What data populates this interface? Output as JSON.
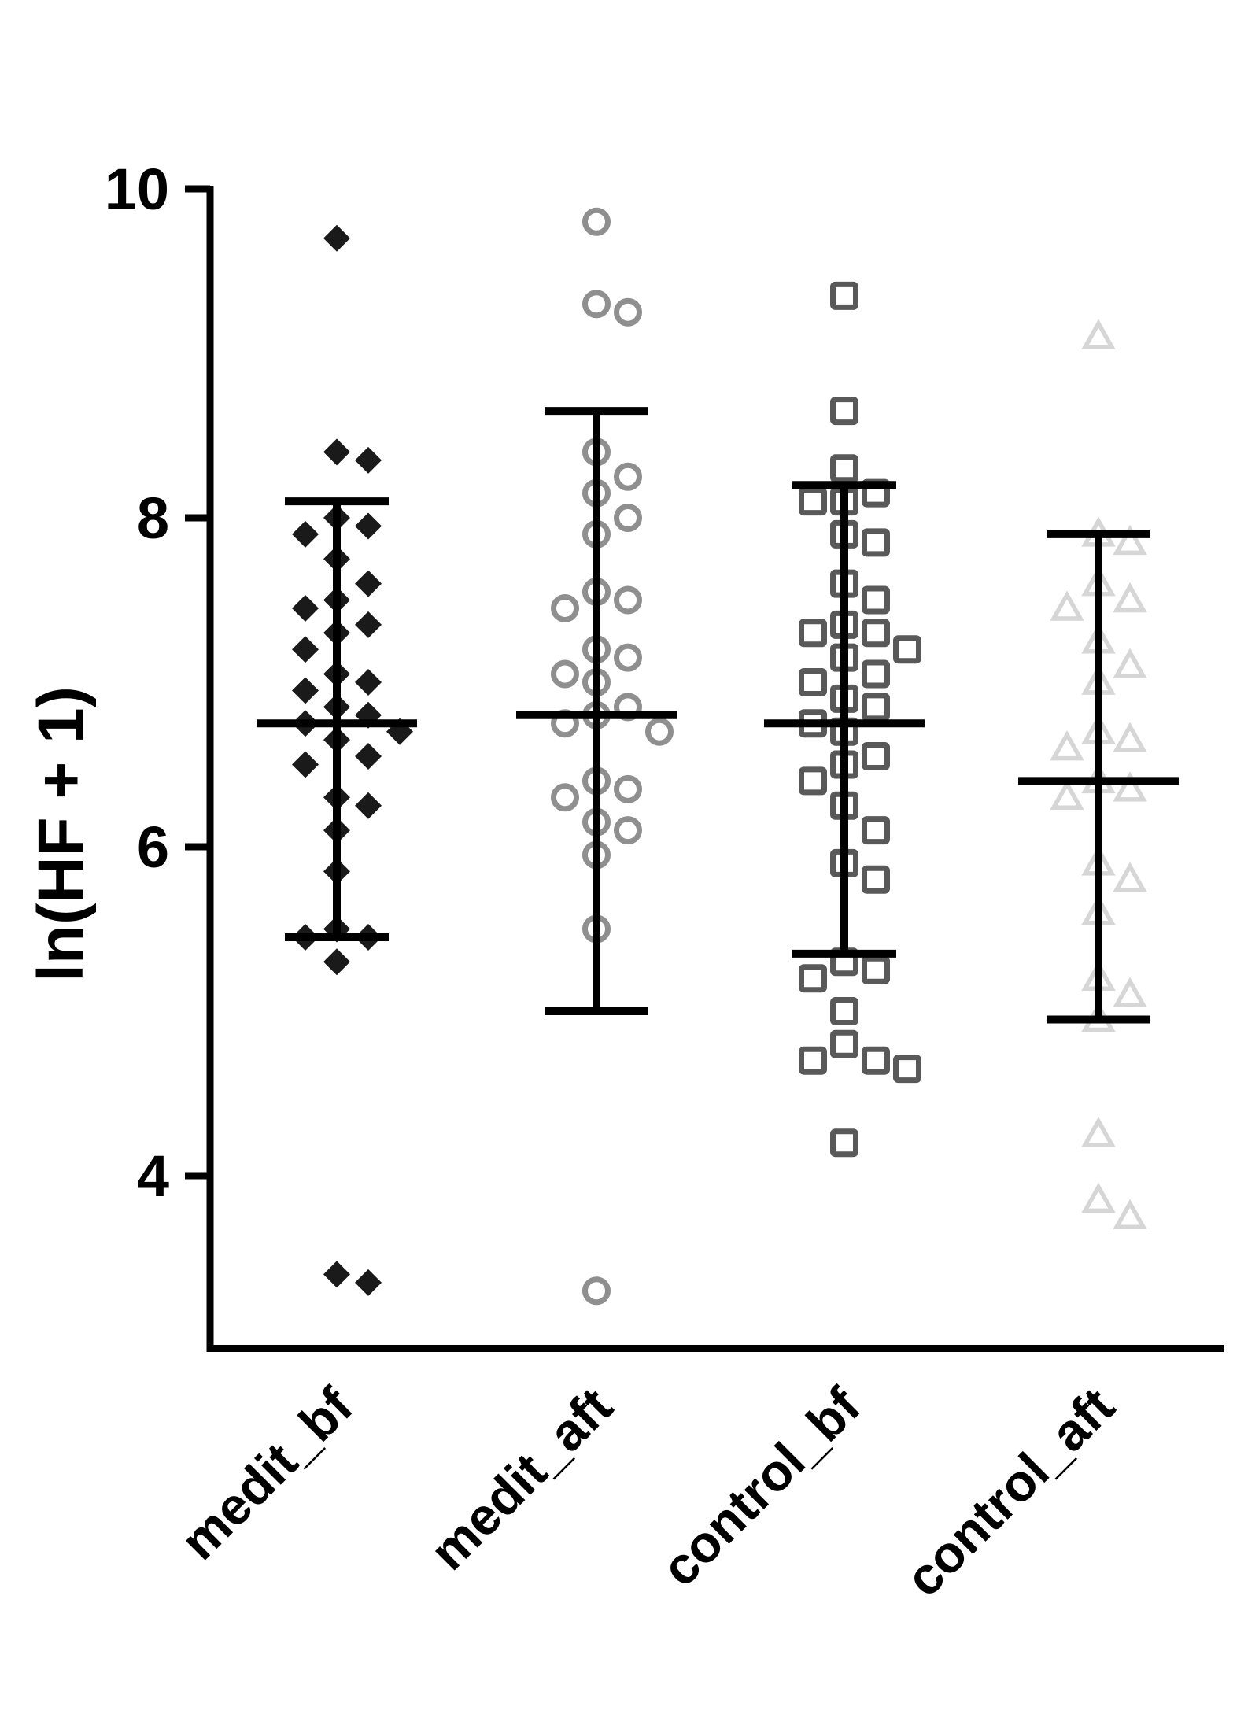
{
  "figure": {
    "background": "#ffffff",
    "axis_color": "#000000"
  },
  "chart_data": {
    "type": "scatter",
    "title": "",
    "xlabel": "",
    "ylabel": "ln(HF + 1)",
    "ylim": [
      2.95,
      10.3
    ],
    "yticks": [
      4,
      6,
      8,
      10
    ],
    "grid": false,
    "legend": "none",
    "error_bar_style": "mean_with_sd_caps",
    "groups": [
      {
        "name": "medit_bf",
        "marker": "diamond-filled",
        "color": "#1a1a1a",
        "mean": 6.75,
        "error_low": 5.45,
        "error_high": 8.1,
        "values": [
          9.7,
          8.4,
          8.35,
          8.0,
          7.95,
          7.9,
          7.75,
          7.6,
          7.5,
          7.45,
          7.35,
          7.3,
          7.2,
          7.05,
          7.0,
          6.95,
          6.85,
          6.8,
          6.75,
          6.7,
          6.65,
          6.55,
          6.5,
          6.3,
          6.25,
          6.1,
          5.85,
          5.5,
          5.45,
          5.45,
          5.3,
          3.4,
          3.35
        ]
      },
      {
        "name": "medit_aft",
        "marker": "circle-open",
        "color": "#8f8f8f",
        "mean": 6.8,
        "error_low": 5.0,
        "error_high": 8.65,
        "values": [
          9.8,
          9.3,
          9.25,
          8.4,
          8.25,
          8.15,
          8.0,
          7.9,
          7.55,
          7.5,
          7.45,
          7.2,
          7.15,
          7.05,
          7.0,
          6.85,
          6.8,
          6.75,
          6.7,
          6.4,
          6.35,
          6.3,
          6.15,
          6.1,
          5.95,
          5.5,
          3.3
        ]
      },
      {
        "name": "control_bf",
        "marker": "square-open",
        "color": "#595959",
        "mean": 6.75,
        "error_low": 5.35,
        "error_high": 8.2,
        "values": [
          9.35,
          8.65,
          8.3,
          8.15,
          8.1,
          8.1,
          7.9,
          7.85,
          7.6,
          7.5,
          7.35,
          7.3,
          7.3,
          7.2,
          7.15,
          7.05,
          7.0,
          6.9,
          6.85,
          6.75,
          6.7,
          6.55,
          6.5,
          6.4,
          6.25,
          6.1,
          5.9,
          5.8,
          5.3,
          5.25,
          5.2,
          5.0,
          4.8,
          4.7,
          4.7,
          4.65,
          4.2
        ]
      },
      {
        "name": "control_aft",
        "marker": "triangle-open",
        "color": "#d6d6d6",
        "mean": 6.4,
        "error_low": 4.95,
        "error_high": 7.9,
        "values": [
          9.1,
          7.9,
          7.85,
          7.6,
          7.5,
          7.45,
          7.25,
          7.1,
          7.0,
          6.7,
          6.65,
          6.6,
          6.4,
          6.35,
          6.3,
          5.9,
          5.8,
          5.6,
          5.2,
          5.1,
          4.95,
          4.25,
          3.85,
          3.75
        ]
      }
    ]
  }
}
